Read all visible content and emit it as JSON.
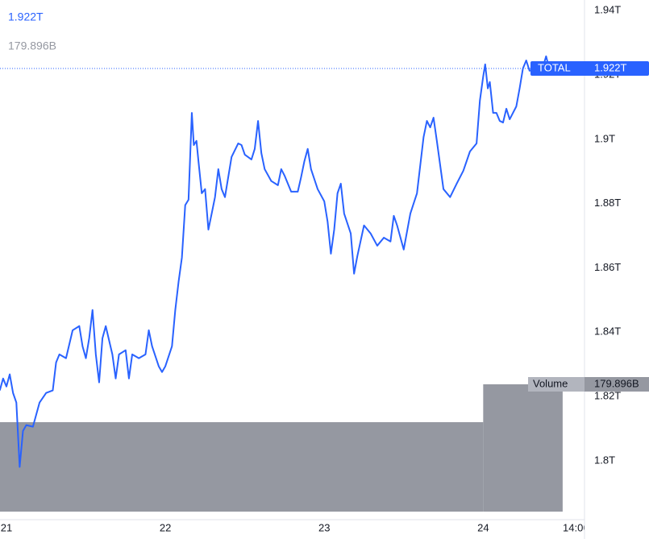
{
  "chart_data": {
    "type": "line",
    "x": [
      -1,
      -0.5,
      0,
      0.5,
      1,
      1.5,
      2,
      2.5,
      3,
      4,
      5,
      6,
      7,
      7.5,
      8,
      9,
      10,
      11,
      11.5,
      12,
      12.5,
      13,
      13.5,
      14,
      14.5,
      15,
      16,
      16.5,
      17,
      18,
      18.5,
      19,
      20,
      21,
      21.5,
      22,
      23,
      23.5,
      24,
      25,
      25.5,
      26,
      26.5,
      27,
      27.5,
      28,
      28.3,
      28.7,
      29,
      29.5,
      30,
      30.5,
      31,
      31.5,
      32,
      32.5,
      33,
      34,
      35,
      35.5,
      36,
      37,
      37.5,
      38,
      38.5,
      39,
      40,
      41,
      41.5,
      42,
      43,
      44,
      44.5,
      45,
      45.5,
      46,
      47,
      48,
      48.5,
      49,
      49.5,
      50,
      50.5,
      51,
      52,
      52.5,
      53,
      54,
      55,
      56,
      57,
      58,
      58.5,
      59,
      60,
      61,
      62,
      63,
      63.5,
      64,
      64.5,
      65,
      66,
      67,
      68,
      69,
      70,
      71,
      71.5,
      72,
      72.3,
      72.7,
      73,
      73.5,
      74,
      74.5,
      75,
      75.5,
      76,
      77,
      77.5,
      78,
      78.5,
      79,
      80,
      81,
      81.5,
      82,
      83,
      84,
      84.3
    ],
    "series": [
      {
        "name": "TOTAL",
        "color": "#2962ff",
        "values": [
          1.8219,
          1.8256,
          1.8231,
          1.8269,
          1.8211,
          1.8181,
          1.7981,
          1.8093,
          1.8111,
          1.8106,
          1.8181,
          1.8211,
          1.8219,
          1.8306,
          1.8331,
          1.8319,
          1.8406,
          1.8419,
          1.8356,
          1.8319,
          1.8381,
          1.8469,
          1.8331,
          1.8244,
          1.8381,
          1.8419,
          1.8331,
          1.8256,
          1.8331,
          1.8344,
          1.8256,
          1.8331,
          1.8319,
          1.8331,
          1.8406,
          1.8356,
          1.8294,
          1.8276,
          1.8294,
          1.8356,
          1.8469,
          1.8557,
          1.8632,
          1.8795,
          1.8812,
          1.9082,
          1.8982,
          1.8995,
          1.8932,
          1.8832,
          1.8845,
          1.8719,
          1.8769,
          1.882,
          1.8907,
          1.8845,
          1.882,
          1.8945,
          1.8987,
          1.8982,
          1.8952,
          1.8937,
          1.897,
          1.9057,
          1.8957,
          1.8907,
          1.887,
          1.8857,
          1.8907,
          1.8887,
          1.8837,
          1.8837,
          1.8882,
          1.8932,
          1.897,
          1.8907,
          1.8845,
          1.8807,
          1.8744,
          1.8644,
          1.8719,
          1.8832,
          1.8862,
          1.8769,
          1.8707,
          1.8582,
          1.8637,
          1.8732,
          1.8707,
          1.8669,
          1.8694,
          1.8682,
          1.8762,
          1.8732,
          1.8657,
          1.8769,
          1.8832,
          1.9007,
          1.9057,
          1.9037,
          1.9067,
          1.8995,
          1.8845,
          1.882,
          1.8862,
          1.8902,
          1.8962,
          1.8987,
          1.912,
          1.9195,
          1.9233,
          1.9158,
          1.9178,
          1.9082,
          1.9082,
          1.9057,
          1.9052,
          1.9095,
          1.9062,
          1.9102,
          1.9158,
          1.922,
          1.9245,
          1.9213,
          1.922,
          1.9223,
          1.9258,
          1.9218,
          1.9233,
          1.9213,
          1.922
        ],
        "last_value_label": "1.922T"
      }
    ],
    "volume": {
      "name": "Volume",
      "color": "#9598a1",
      "bins": [
        -1,
        72,
        84
      ],
      "values": [
        126.4,
        179.896
      ],
      "last_value_label": "179.896B",
      "ylim": [
        0,
        723
      ]
    },
    "xlim": [
      -0.97,
      87.3
    ],
    "xticks": [
      {
        "value": 0,
        "label": "21"
      },
      {
        "value": 24,
        "label": "22"
      },
      {
        "value": 48,
        "label": "23"
      },
      {
        "value": 72,
        "label": "24"
      },
      {
        "value": 86,
        "label": "14:00"
      }
    ],
    "ylim": [
      1.7817,
      1.9433
    ],
    "yticks": [
      {
        "value": 1.8,
        "label": "1.8T"
      },
      {
        "value": 1.82,
        "label": "1.82T"
      },
      {
        "value": 1.84,
        "label": "1.84T"
      },
      {
        "value": 1.86,
        "label": "1.86T"
      },
      {
        "value": 1.88,
        "label": "1.88T"
      },
      {
        "value": 1.9,
        "label": "1.9T"
      },
      {
        "value": 1.92,
        "label": "1.92T"
      },
      {
        "value": 1.94,
        "label": "1.94T"
      }
    ]
  }
}
